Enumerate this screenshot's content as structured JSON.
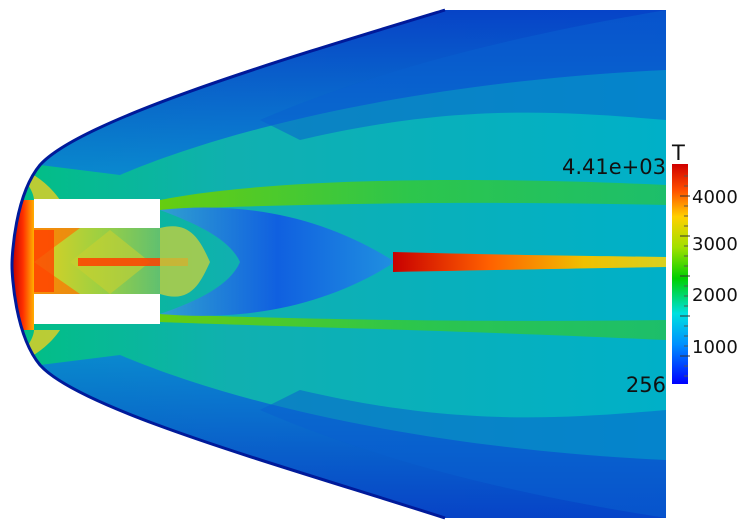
{
  "scalar_bar": {
    "title": "T",
    "max_label": "4.41e+03",
    "min_label": "256",
    "tick_labels": [
      "4000",
      "3000",
      "2000",
      "1000"
    ],
    "colormap": [
      "#0000ff",
      "#00aaff",
      "#00e0c0",
      "#00d000",
      "#c8d800",
      "#ffa000",
      "#ff2000",
      "#d00000"
    ]
  },
  "field_colors": {
    "freestream": "#00b8b8",
    "outer": "#0a3fc8",
    "shock_line": "#001a9a",
    "hot": "#d01010",
    "warm": "#d8d020",
    "cold_core": "#1466e0"
  }
}
